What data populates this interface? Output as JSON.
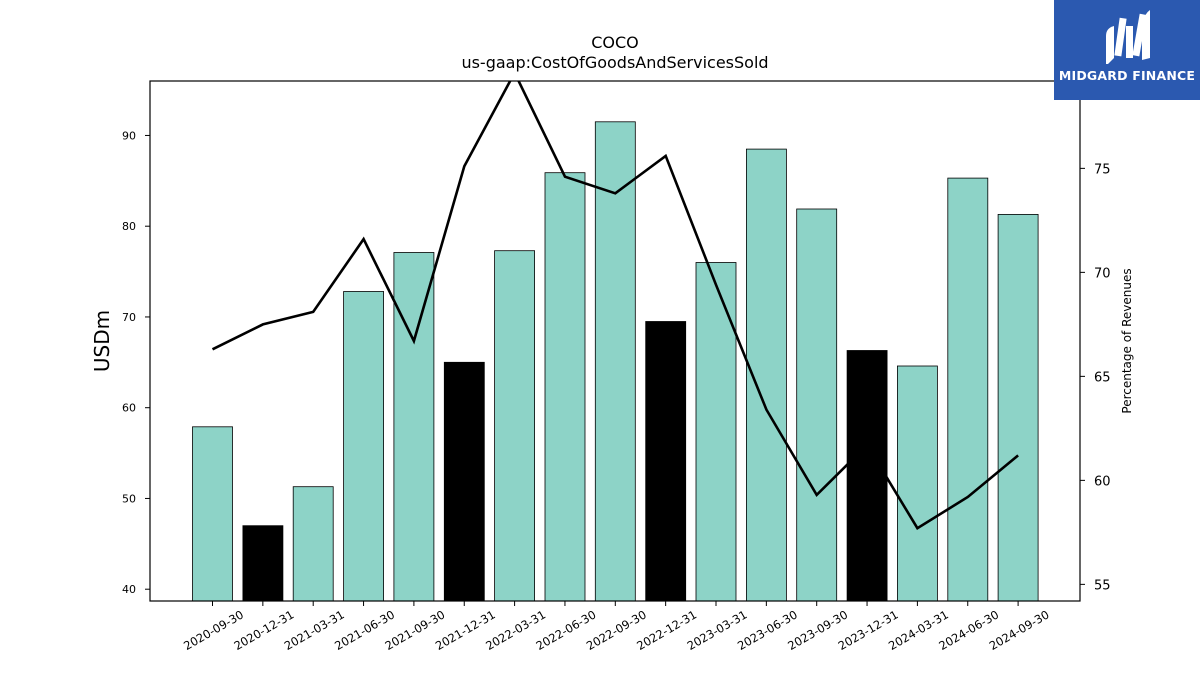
{
  "brand": {
    "name": "MIDGARD FINANCE",
    "bg_color": "#2b59b0",
    "mark_color": "#ffffff"
  },
  "chart_data": {
    "type": "bar",
    "title": "COCO",
    "subtitle": "us-gaap:CostOfGoodsAndServicesSold",
    "ylabel": "USDm",
    "y2label": "Percentage of Revenues",
    "ylim": [
      38.7,
      96
    ],
    "y2lim": [
      54.2,
      79.2
    ],
    "yticks": [
      40,
      50,
      60,
      70,
      80,
      90
    ],
    "y2ticks": [
      55,
      60,
      65,
      70,
      75
    ],
    "grid": false,
    "categories": [
      "2020-09-30",
      "2020-12-31",
      "2021-03-31",
      "2021-06-30",
      "2021-09-30",
      "2021-12-31",
      "2022-03-31",
      "2022-06-30",
      "2022-09-30",
      "2022-12-31",
      "2023-03-31",
      "2023-06-30",
      "2023-09-30",
      "2023-12-31",
      "2024-03-31",
      "2024-06-30",
      "2024-09-30"
    ],
    "series": [
      {
        "kind": "bar",
        "axis": "left",
        "values": [
          57.9,
          47.0,
          51.3,
          72.8,
          77.1,
          65.0,
          77.3,
          85.9,
          91.5,
          69.5,
          76.0,
          88.5,
          81.9,
          66.3,
          64.6,
          85.3,
          81.3
        ],
        "colors": [
          "#8dd3c7",
          "#000000",
          "#8dd3c7",
          "#8dd3c7",
          "#8dd3c7",
          "#000000",
          "#8dd3c7",
          "#8dd3c7",
          "#8dd3c7",
          "#000000",
          "#8dd3c7",
          "#8dd3c7",
          "#8dd3c7",
          "#000000",
          "#8dd3c7",
          "#8dd3c7",
          "#8dd3c7"
        ]
      },
      {
        "kind": "line",
        "axis": "right",
        "color": "#000000",
        "values": [
          66.3,
          67.5,
          68.1,
          71.6,
          66.7,
          75.1,
          79.6,
          74.6,
          73.8,
          75.6,
          69.4,
          63.4,
          59.3,
          61.7,
          57.7,
          59.2,
          61.2
        ]
      }
    ]
  }
}
